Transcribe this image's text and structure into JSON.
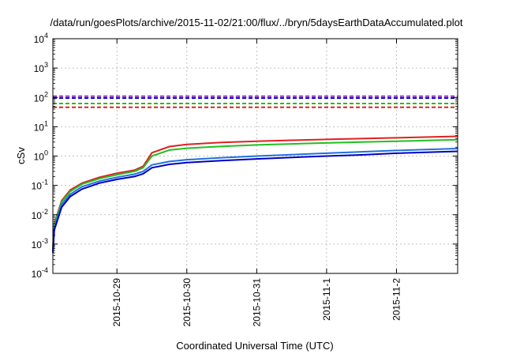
{
  "chart_data": {
    "type": "line",
    "title": "/data/run/goesPlots/archive/2015-11-02/21:00/flux/../bryn/5daysEarthDataAccumulated.plot",
    "xlabel": "Coordinated Universal Time (UTC)",
    "ylabel": "cSv",
    "y_scale": "log",
    "ylim": [
      0.0001,
      10000
    ],
    "xlim": [
      "2015-10-28T02:00",
      "2015-11-02T21:00"
    ],
    "grid": true,
    "legend": "none",
    "x_ticks": [
      "2015-10-29",
      "2015-10-30",
      "2015-10-31",
      "2015-11-1",
      "2015-11-2"
    ],
    "y_ticks": [
      {
        "base": "10",
        "exp": "-4"
      },
      {
        "base": "10",
        "exp": "-3"
      },
      {
        "base": "10",
        "exp": "-2"
      },
      {
        "base": "10",
        "exp": "-1"
      },
      {
        "base": "10",
        "exp": "0"
      },
      {
        "base": "10",
        "exp": "1"
      },
      {
        "base": "10",
        "exp": "2"
      },
      {
        "base": "10",
        "exp": "3"
      },
      {
        "base": "10",
        "exp": "4"
      }
    ],
    "series": [
      {
        "color": "#e02020",
        "style": "solid",
        "x": [
          "2015-10-28T02:00",
          "2015-10-28T02:30",
          "2015-10-28T05:00",
          "2015-10-28T08:00",
          "2015-10-28T12:00",
          "2015-10-28T18:00",
          "2015-10-29T00:00",
          "2015-10-29T06:00",
          "2015-10-29T09:00",
          "2015-10-29T12:00",
          "2015-10-29T18:00",
          "2015-10-30T00:00",
          "2015-10-30T12:00",
          "2015-10-31T00:00",
          "2015-10-31T12:00",
          "2015-11-01T00:00",
          "2015-11-01T12:00",
          "2015-11-02T00:00",
          "2015-11-02T21:00"
        ],
        "y": [
          0.0008,
          0.005,
          0.03,
          0.07,
          0.12,
          0.19,
          0.26,
          0.33,
          0.45,
          1.3,
          2.1,
          2.5,
          2.9,
          3.2,
          3.45,
          3.7,
          3.95,
          4.2,
          4.7
        ]
      },
      {
        "color": "#20c020",
        "style": "solid",
        "x": [
          "2015-10-28T02:00",
          "2015-10-28T02:30",
          "2015-10-28T05:00",
          "2015-10-28T08:00",
          "2015-10-28T12:00",
          "2015-10-28T18:00",
          "2015-10-29T00:00",
          "2015-10-29T06:00",
          "2015-10-29T09:00",
          "2015-10-29T12:00",
          "2015-10-29T18:00",
          "2015-10-30T00:00",
          "2015-10-30T12:00",
          "2015-10-31T00:00",
          "2015-10-31T12:00",
          "2015-11-01T00:00",
          "2015-11-01T12:00",
          "2015-11-02T00:00",
          "2015-11-02T21:00"
        ],
        "y": [
          0.0007,
          0.0045,
          0.027,
          0.062,
          0.11,
          0.17,
          0.23,
          0.3,
          0.4,
          1.0,
          1.6,
          1.85,
          2.15,
          2.4,
          2.6,
          2.8,
          3.0,
          3.2,
          3.6
        ]
      },
      {
        "color": "#2070e0",
        "style": "solid",
        "x": [
          "2015-10-28T02:00",
          "2015-10-28T02:30",
          "2015-10-28T05:00",
          "2015-10-28T08:00",
          "2015-10-28T12:00",
          "2015-10-28T18:00",
          "2015-10-29T00:00",
          "2015-10-29T06:00",
          "2015-10-29T09:00",
          "2015-10-29T12:00",
          "2015-10-29T18:00",
          "2015-10-30T00:00",
          "2015-10-30T12:00",
          "2015-10-31T00:00",
          "2015-10-31T12:00",
          "2015-11-01T00:00",
          "2015-11-01T12:00",
          "2015-11-02T00:00",
          "2015-11-02T21:00"
        ],
        "y": [
          0.0006,
          0.0035,
          0.022,
          0.05,
          0.09,
          0.14,
          0.19,
          0.24,
          0.3,
          0.5,
          0.65,
          0.75,
          0.88,
          1.0,
          1.12,
          1.25,
          1.4,
          1.55,
          1.8
        ]
      },
      {
        "color": "#0000c0",
        "style": "solid",
        "x": [
          "2015-10-28T02:00",
          "2015-10-28T02:30",
          "2015-10-28T05:00",
          "2015-10-28T08:00",
          "2015-10-28T12:00",
          "2015-10-28T18:00",
          "2015-10-29T00:00",
          "2015-10-29T06:00",
          "2015-10-29T09:00",
          "2015-10-29T12:00",
          "2015-10-29T18:00",
          "2015-10-30T00:00",
          "2015-10-30T12:00",
          "2015-10-31T00:00",
          "2015-10-31T12:00",
          "2015-11-01T00:00",
          "2015-11-01T12:00",
          "2015-11-02T00:00",
          "2015-11-02T21:00"
        ],
        "y": [
          0.0005,
          0.003,
          0.018,
          0.042,
          0.075,
          0.12,
          0.16,
          0.2,
          0.25,
          0.4,
          0.52,
          0.6,
          0.7,
          0.8,
          0.9,
          1.0,
          1.1,
          1.25,
          1.45
        ]
      },
      {
        "color": "#9030d0",
        "style": "dashed",
        "x": [
          "2015-10-28T02:00",
          "2015-11-02T21:00"
        ],
        "y": [
          110,
          110
        ]
      },
      {
        "color": "#0000c0",
        "style": "dashed",
        "x": [
          "2015-10-28T02:00",
          "2015-11-02T21:00"
        ],
        "y": [
          95,
          95
        ]
      },
      {
        "color": "#20c020",
        "style": "dashed",
        "x": [
          "2015-10-28T02:00",
          "2015-11-02T21:00"
        ],
        "y": [
          62,
          62
        ]
      },
      {
        "color": "#e02020",
        "style": "dashed",
        "x": [
          "2015-10-28T02:00",
          "2015-11-02T21:00"
        ],
        "y": [
          46,
          46
        ]
      }
    ]
  }
}
